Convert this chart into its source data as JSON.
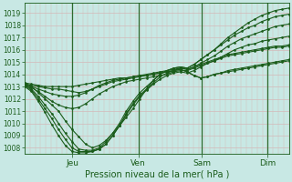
{
  "bg_color": "#c8e8e4",
  "grid_color_h": "#d4b8b8",
  "grid_color_v": "#d4b8b8",
  "line_color": "#1a5c1a",
  "vline_color": "#2d6b2d",
  "title": "Pression niveau de la mer( hPa )",
  "ylim": [
    1007.5,
    1019.8
  ],
  "yticks": [
    1008,
    1009,
    1010,
    1011,
    1012,
    1013,
    1014,
    1015,
    1016,
    1017,
    1018,
    1019
  ],
  "xlim": [
    0,
    100
  ],
  "xtick_positions": [
    18,
    43,
    67,
    92
  ],
  "xtick_labels": [
    "Jeu",
    "Ven",
    "Sam",
    "Dim"
  ],
  "vline_positions": [
    18,
    43,
    67,
    92
  ],
  "series": [
    [
      1013.3,
      1013.0,
      1012.5,
      1012.0,
      1011.5,
      1011.0,
      1010.2,
      1009.5,
      1008.9,
      1008.3,
      1008.0,
      1008.2,
      1008.6,
      1009.2,
      1009.8,
      1010.5,
      1011.2,
      1012.0,
      1012.8,
      1013.5,
      1014.0,
      1014.3,
      1014.5,
      1014.6,
      1014.5,
      1014.8,
      1015.2,
      1015.6,
      1016.0,
      1016.5,
      1017.0,
      1017.4,
      1017.8,
      1018.2,
      1018.5,
      1018.8,
      1019.0,
      1019.2,
      1019.3,
      1019.4
    ],
    [
      1013.2,
      1012.8,
      1012.2,
      1011.5,
      1010.8,
      1010.0,
      1009.2,
      1008.5,
      1007.9,
      1007.8,
      1007.8,
      1008.0,
      1008.5,
      1009.2,
      1010.0,
      1011.0,
      1011.8,
      1012.5,
      1013.0,
      1013.5,
      1014.0,
      1014.3,
      1014.5,
      1014.6,
      1014.5,
      1014.8,
      1015.2,
      1015.6,
      1016.0,
      1016.4,
      1016.8,
      1017.2,
      1017.5,
      1017.8,
      1018.0,
      1018.3,
      1018.5,
      1018.7,
      1018.8,
      1018.9
    ],
    [
      1013.1,
      1012.7,
      1012.0,
      1011.2,
      1010.4,
      1009.5,
      1008.7,
      1008.0,
      1007.7,
      1007.7,
      1007.7,
      1007.9,
      1008.3,
      1009.0,
      1009.8,
      1010.8,
      1011.6,
      1012.3,
      1012.8,
      1013.3,
      1013.8,
      1014.1,
      1014.3,
      1014.5,
      1014.4,
      1014.6,
      1014.9,
      1015.2,
      1015.5,
      1015.9,
      1016.3,
      1016.6,
      1016.9,
      1017.1,
      1017.3,
      1017.5,
      1017.7,
      1017.9,
      1018.0,
      1018.1
    ],
    [
      1013.0,
      1012.6,
      1011.8,
      1010.9,
      1009.9,
      1009.0,
      1008.2,
      1007.7,
      1007.6,
      1007.6,
      1007.7,
      1007.9,
      1008.3,
      1009.0,
      1009.8,
      1010.7,
      1011.5,
      1012.2,
      1012.7,
      1013.2,
      1013.6,
      1013.9,
      1014.1,
      1014.2,
      1014.1,
      1014.3,
      1014.6,
      1014.9,
      1015.1,
      1015.4,
      1015.7,
      1016.0,
      1016.2,
      1016.4,
      1016.5,
      1016.7,
      1016.8,
      1016.9,
      1017.0,
      1017.1
    ],
    [
      1013.2,
      1013.1,
      1013.0,
      1012.9,
      1012.8,
      1012.8,
      1012.7,
      1012.6,
      1012.5,
      1012.6,
      1012.8,
      1013.0,
      1013.2,
      1013.4,
      1013.5,
      1013.6,
      1013.7,
      1013.8,
      1013.9,
      1014.0,
      1014.1,
      1014.2,
      1014.3,
      1014.4,
      1014.2,
      1013.9,
      1013.7,
      1013.8,
      1014.0,
      1014.1,
      1014.3,
      1014.4,
      1014.5,
      1014.6,
      1014.7,
      1014.8,
      1014.9,
      1015.0,
      1015.1,
      1015.2
    ],
    [
      1013.2,
      1013.0,
      1012.8,
      1012.6,
      1012.4,
      1012.3,
      1012.2,
      1012.2,
      1012.3,
      1012.5,
      1012.8,
      1013.1,
      1013.3,
      1013.5,
      1013.6,
      1013.7,
      1013.8,
      1013.9,
      1014.0,
      1014.1,
      1014.2,
      1014.3,
      1014.4,
      1014.5,
      1014.4,
      1014.6,
      1014.8,
      1015.0,
      1015.2,
      1015.4,
      1015.6,
      1015.7,
      1015.8,
      1015.9,
      1016.0,
      1016.1,
      1016.2,
      1016.3,
      1016.3,
      1016.4
    ],
    [
      1013.1,
      1012.9,
      1012.6,
      1012.2,
      1011.8,
      1011.5,
      1011.3,
      1011.2,
      1011.3,
      1011.6,
      1012.0,
      1012.4,
      1012.7,
      1013.0,
      1013.2,
      1013.4,
      1013.5,
      1013.6,
      1013.7,
      1013.8,
      1013.9,
      1014.0,
      1014.2,
      1014.3,
      1014.3,
      1014.5,
      1014.7,
      1014.9,
      1015.1,
      1015.3,
      1015.5,
      1015.6,
      1015.7,
      1015.8,
      1015.9,
      1016.0,
      1016.1,
      1016.2,
      1016.2,
      1016.3
    ],
    [
      1013.3,
      1013.2,
      1013.1,
      1013.0,
      1013.0,
      1013.0,
      1013.0,
      1013.0,
      1013.1,
      1013.2,
      1013.3,
      1013.4,
      1013.5,
      1013.6,
      1013.7,
      1013.7,
      1013.8,
      1013.9,
      1013.9,
      1014.0,
      1014.1,
      1014.2,
      1014.3,
      1014.4,
      1014.2,
      1013.9,
      1013.7,
      1013.8,
      1014.0,
      1014.1,
      1014.2,
      1014.3,
      1014.4,
      1014.5,
      1014.6,
      1014.7,
      1014.8,
      1014.9,
      1015.0,
      1015.1
    ]
  ]
}
